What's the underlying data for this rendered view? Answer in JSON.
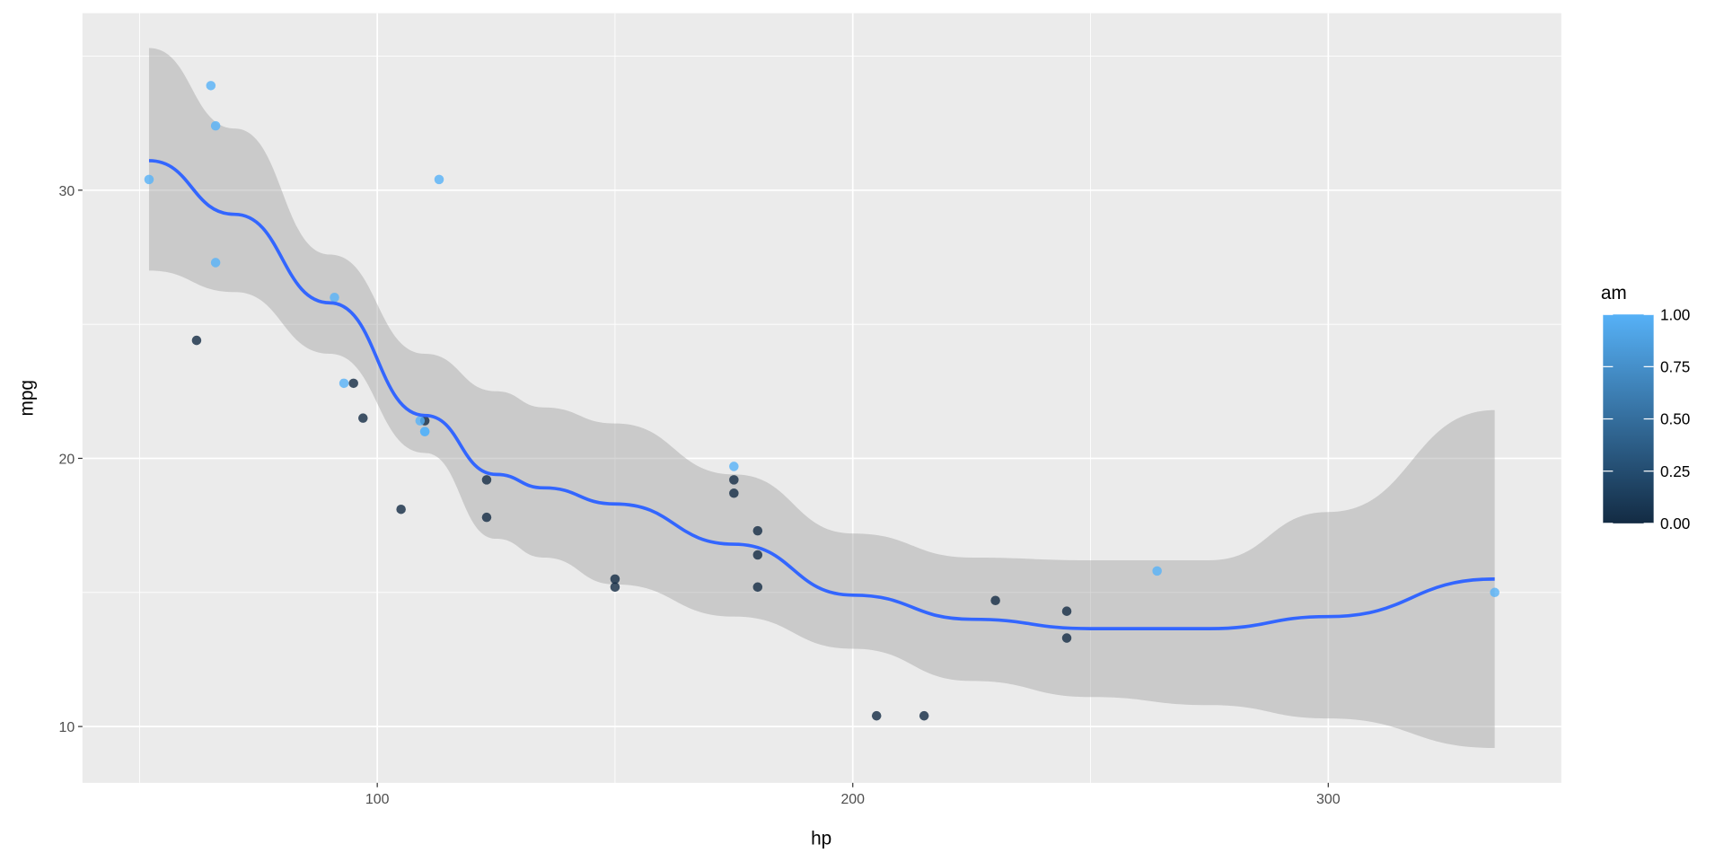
{
  "chart_data": {
    "type": "scatter",
    "xlabel": "hp",
    "ylabel": "mpg",
    "xlim": [
      38,
      349
    ],
    "ylim": [
      7.9,
      36.6
    ],
    "x_ticks": [
      100,
      200,
      300
    ],
    "y_ticks": [
      10,
      20,
      30
    ],
    "x_tick_labels": [
      "100",
      "200",
      "300"
    ],
    "y_tick_labels": [
      "10",
      "20",
      "30"
    ],
    "grid": true,
    "background": "#EBEBEB",
    "legend": {
      "title": "am",
      "position": "right",
      "type": "colorbar",
      "low_color": "#132B43",
      "high_color": "#56B1F7",
      "range": [
        0,
        1
      ],
      "tick_values": [
        0,
        0.25,
        0.5,
        0.75,
        1
      ],
      "tick_labels": [
        "0.00",
        "0.25",
        "0.50",
        "0.75",
        "1.00"
      ]
    },
    "points": [
      {
        "hp": 110,
        "mpg": 21.0,
        "am": 1
      },
      {
        "hp": 110,
        "mpg": 21.0,
        "am": 1
      },
      {
        "hp": 93,
        "mpg": 22.8,
        "am": 1
      },
      {
        "hp": 110,
        "mpg": 21.4,
        "am": 0
      },
      {
        "hp": 175,
        "mpg": 18.7,
        "am": 0
      },
      {
        "hp": 105,
        "mpg": 18.1,
        "am": 0
      },
      {
        "hp": 245,
        "mpg": 14.3,
        "am": 0
      },
      {
        "hp": 62,
        "mpg": 24.4,
        "am": 0
      },
      {
        "hp": 95,
        "mpg": 22.8,
        "am": 0
      },
      {
        "hp": 123,
        "mpg": 19.2,
        "am": 0
      },
      {
        "hp": 123,
        "mpg": 17.8,
        "am": 0
      },
      {
        "hp": 180,
        "mpg": 16.4,
        "am": 0
      },
      {
        "hp": 180,
        "mpg": 17.3,
        "am": 0
      },
      {
        "hp": 180,
        "mpg": 15.2,
        "am": 0
      },
      {
        "hp": 205,
        "mpg": 10.4,
        "am": 0
      },
      {
        "hp": 215,
        "mpg": 10.4,
        "am": 0
      },
      {
        "hp": 230,
        "mpg": 14.7,
        "am": 0
      },
      {
        "hp": 66,
        "mpg": 32.4,
        "am": 1
      },
      {
        "hp": 52,
        "mpg": 30.4,
        "am": 1
      },
      {
        "hp": 65,
        "mpg": 33.9,
        "am": 1
      },
      {
        "hp": 97,
        "mpg": 21.5,
        "am": 0
      },
      {
        "hp": 150,
        "mpg": 15.5,
        "am": 0
      },
      {
        "hp": 150,
        "mpg": 15.2,
        "am": 0
      },
      {
        "hp": 245,
        "mpg": 13.3,
        "am": 0
      },
      {
        "hp": 175,
        "mpg": 19.2,
        "am": 0
      },
      {
        "hp": 66,
        "mpg": 27.3,
        "am": 1
      },
      {
        "hp": 91,
        "mpg": 26.0,
        "am": 1
      },
      {
        "hp": 113,
        "mpg": 30.4,
        "am": 1
      },
      {
        "hp": 264,
        "mpg": 15.8,
        "am": 1
      },
      {
        "hp": 175,
        "mpg": 19.7,
        "am": 1
      },
      {
        "hp": 335,
        "mpg": 15.0,
        "am": 1
      },
      {
        "hp": 109,
        "mpg": 21.4,
        "am": 1
      }
    ],
    "smooth": {
      "method": "loess",
      "color": "#3366FF",
      "band_color": "#999999",
      "hp": [
        52,
        70,
        90,
        110,
        125,
        135,
        150,
        175,
        200,
        225,
        250,
        275,
        300,
        335
      ],
      "fit": [
        31.1,
        29.1,
        25.8,
        21.6,
        19.4,
        18.9,
        18.3,
        16.8,
        14.9,
        14.0,
        13.65,
        13.65,
        14.1,
        15.5
      ],
      "upper": [
        35.3,
        32.3,
        27.6,
        23.9,
        22.5,
        21.9,
        21.3,
        19.4,
        17.2,
        16.3,
        16.2,
        16.2,
        18.0,
        21.8
      ],
      "lower": [
        27.0,
        26.2,
        23.9,
        20.2,
        17.0,
        16.3,
        15.3,
        14.1,
        12.9,
        11.7,
        11.1,
        10.8,
        10.3,
        9.2
      ]
    }
  }
}
